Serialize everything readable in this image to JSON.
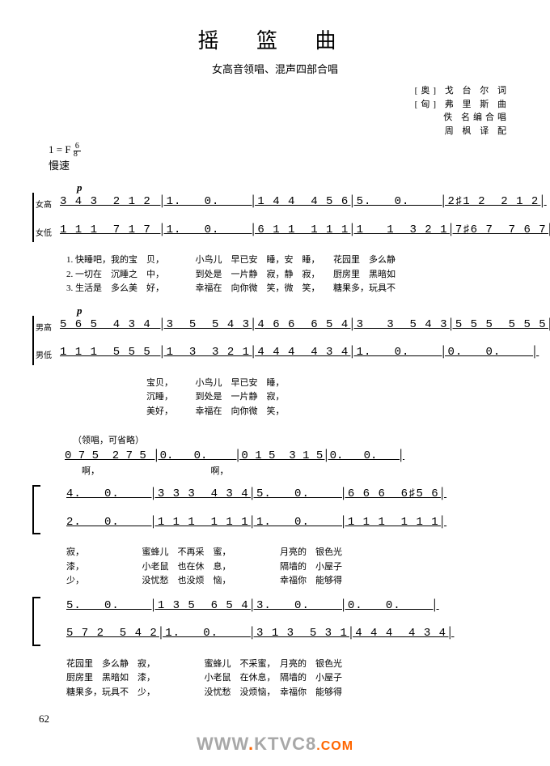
{
  "title": "摇 篮 曲",
  "subtitle": "女高音领唱、混声四部合唱",
  "credits": {
    "line1": "[奥] 戈 台 尔 词",
    "line2": "[匈] 弗 里 斯 曲",
    "line3": "　　 佚 名编合唱",
    "line4": "　　 周 枫 译 配"
  },
  "key_sig": "1 = F",
  "time_sig_num": "6",
  "time_sig_den": "8",
  "tempo": "慢速",
  "dynamic_p": "p",
  "parts": {
    "soprano_label": "女高",
    "alto_label": "女低",
    "tenor_label": "男高",
    "bass_label": "男低"
  },
  "system1": {
    "soprano": "3 4 3  2 1 2 │1.   0.    │1 4 4  4 5 6│5.   0.    │2♯1 2  2 1 2│",
    "alto": "1 1 1  7 1 7 │1.   0.    │6 1 1  1 1 1│1   1  3 2 1│7♯6 7  7 6 7│",
    "tenor": "5 6 5  4 3 4 │3  5  5 4 3│4 6 6  6 5 4│3   3  5 4 3│5 5 5  5 5 5│",
    "bass": "1 1 1  5 5 5 │1  3  3 2 1│4 4 4  4 3 4│1.   0.    │0.   0.    │"
  },
  "lyrics1": {
    "l1": "1. 快睡吧，我的宝　贝，　　　　小鸟儿　早已安　睡，安　睡，　　花园里　多么静",
    "l2": "2. 一切在　沉睡之　中，　　　　到处是　一片静　寂，静　寂，　　厨房里　黑暗如",
    "l3": "3. 生活是　多么美　好，　　　　幸福在　向你微　笑，微　笑，　　糖果多，玩具不"
  },
  "lyrics1b": {
    "l1": "　　　　　　　　　宝贝，　　　小鸟儿　早已安　睡，",
    "l2": "　　　　　　　　　沉睡，　　　到处是　一片静　寂，",
    "l3": "　　　　　　　　　美好，　　　幸福在　向你微　笑，"
  },
  "lead_label": "（领唱，可省略）",
  "solo": {
    "line": "0 7 5  2 7 5 │0.   0.    │0 1 5  3 1 5│0.   0.   │",
    "lyric": "　啊，　　　　　　　　　　　　　啊，"
  },
  "system2": {
    "soprano": "4.   0.    │3 3 3  4 3 4│5.   0.    │6 6 6  6♯5 6│",
    "alto": "2.   0.    │1 1 1  1 1 1│1.   0.    │1 1 1  1 1 1│",
    "tenor": "5.   0.    │1 3 5  6 5 4│3.   0.    │0.   0.    │",
    "bass": "5 7 2  5 4 2│1.   0.    │3 1 3  5 3 1│4 4 4  4 3 4│"
  },
  "lyrics2": {
    "l1": "寂，　　　　　　　蜜蜂儿　不再采　蜜，　　　　　　月亮的　银色光",
    "l2": "漆，　　　　　　　小老鼠　也在休　息，　　　　　　隔墙的　小屋子",
    "l3": "少，　　　　　　　没忧愁　也没烦　恼，　　　　　　幸福你　能够得"
  },
  "lyrics2b": {
    "l1": "花园里　多么静　寂，　　　　　　蜜蜂儿　不采蜜，　月亮的　银色光",
    "l2": "厨房里　黑暗如　漆，　　　　　　小老鼠　在休息，　隔墙的　小屋子",
    "l3": "糖果多，玩具不　少，　　　　　　没忧愁　没烦恼，　幸福你　能够得"
  },
  "page_number": "62",
  "watermark": {
    "main": "WWW",
    "dot": ".",
    "mid": "KTVC8",
    "com": ".COM"
  },
  "colors": {
    "bg": "#ffffff",
    "text": "#000000",
    "wm_gray": "#a8a8a8",
    "wm_orange": "#ff6600"
  }
}
